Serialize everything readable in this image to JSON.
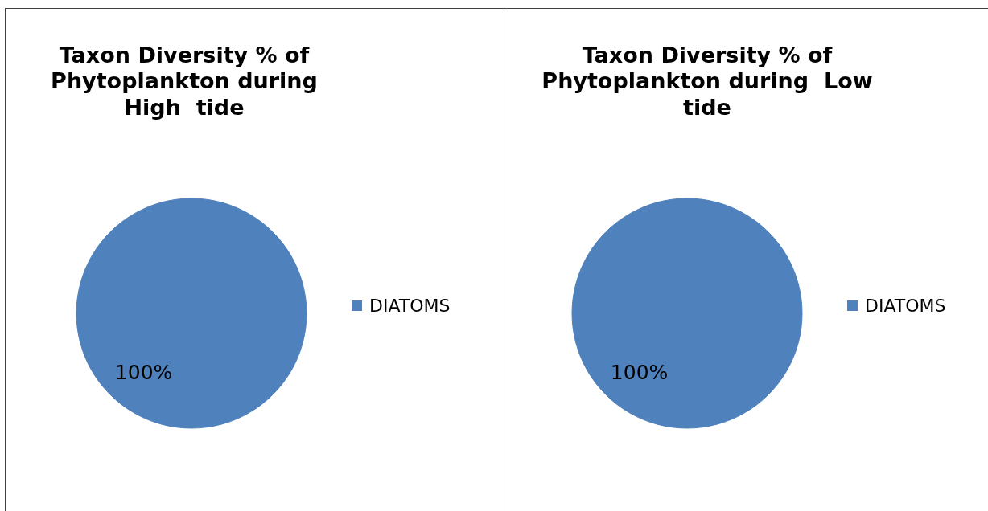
{
  "chart_data": [
    {
      "type": "pie",
      "title": "Taxon Diversity % of Phytoplankton during High  tide",
      "categories": [
        "DIATOMS"
      ],
      "values": [
        100
      ],
      "colors": [
        "#4f81bd"
      ],
      "value_labels": [
        "100%"
      ],
      "legend": "right"
    },
    {
      "type": "pie",
      "title": "Taxon Diversity % of Phytoplankton during  Low tide",
      "categories": [
        "DIATOMS"
      ],
      "values": [
        100
      ],
      "colors": [
        "#4f81bd"
      ],
      "value_labels": [
        "100%"
      ],
      "legend": "right"
    }
  ]
}
